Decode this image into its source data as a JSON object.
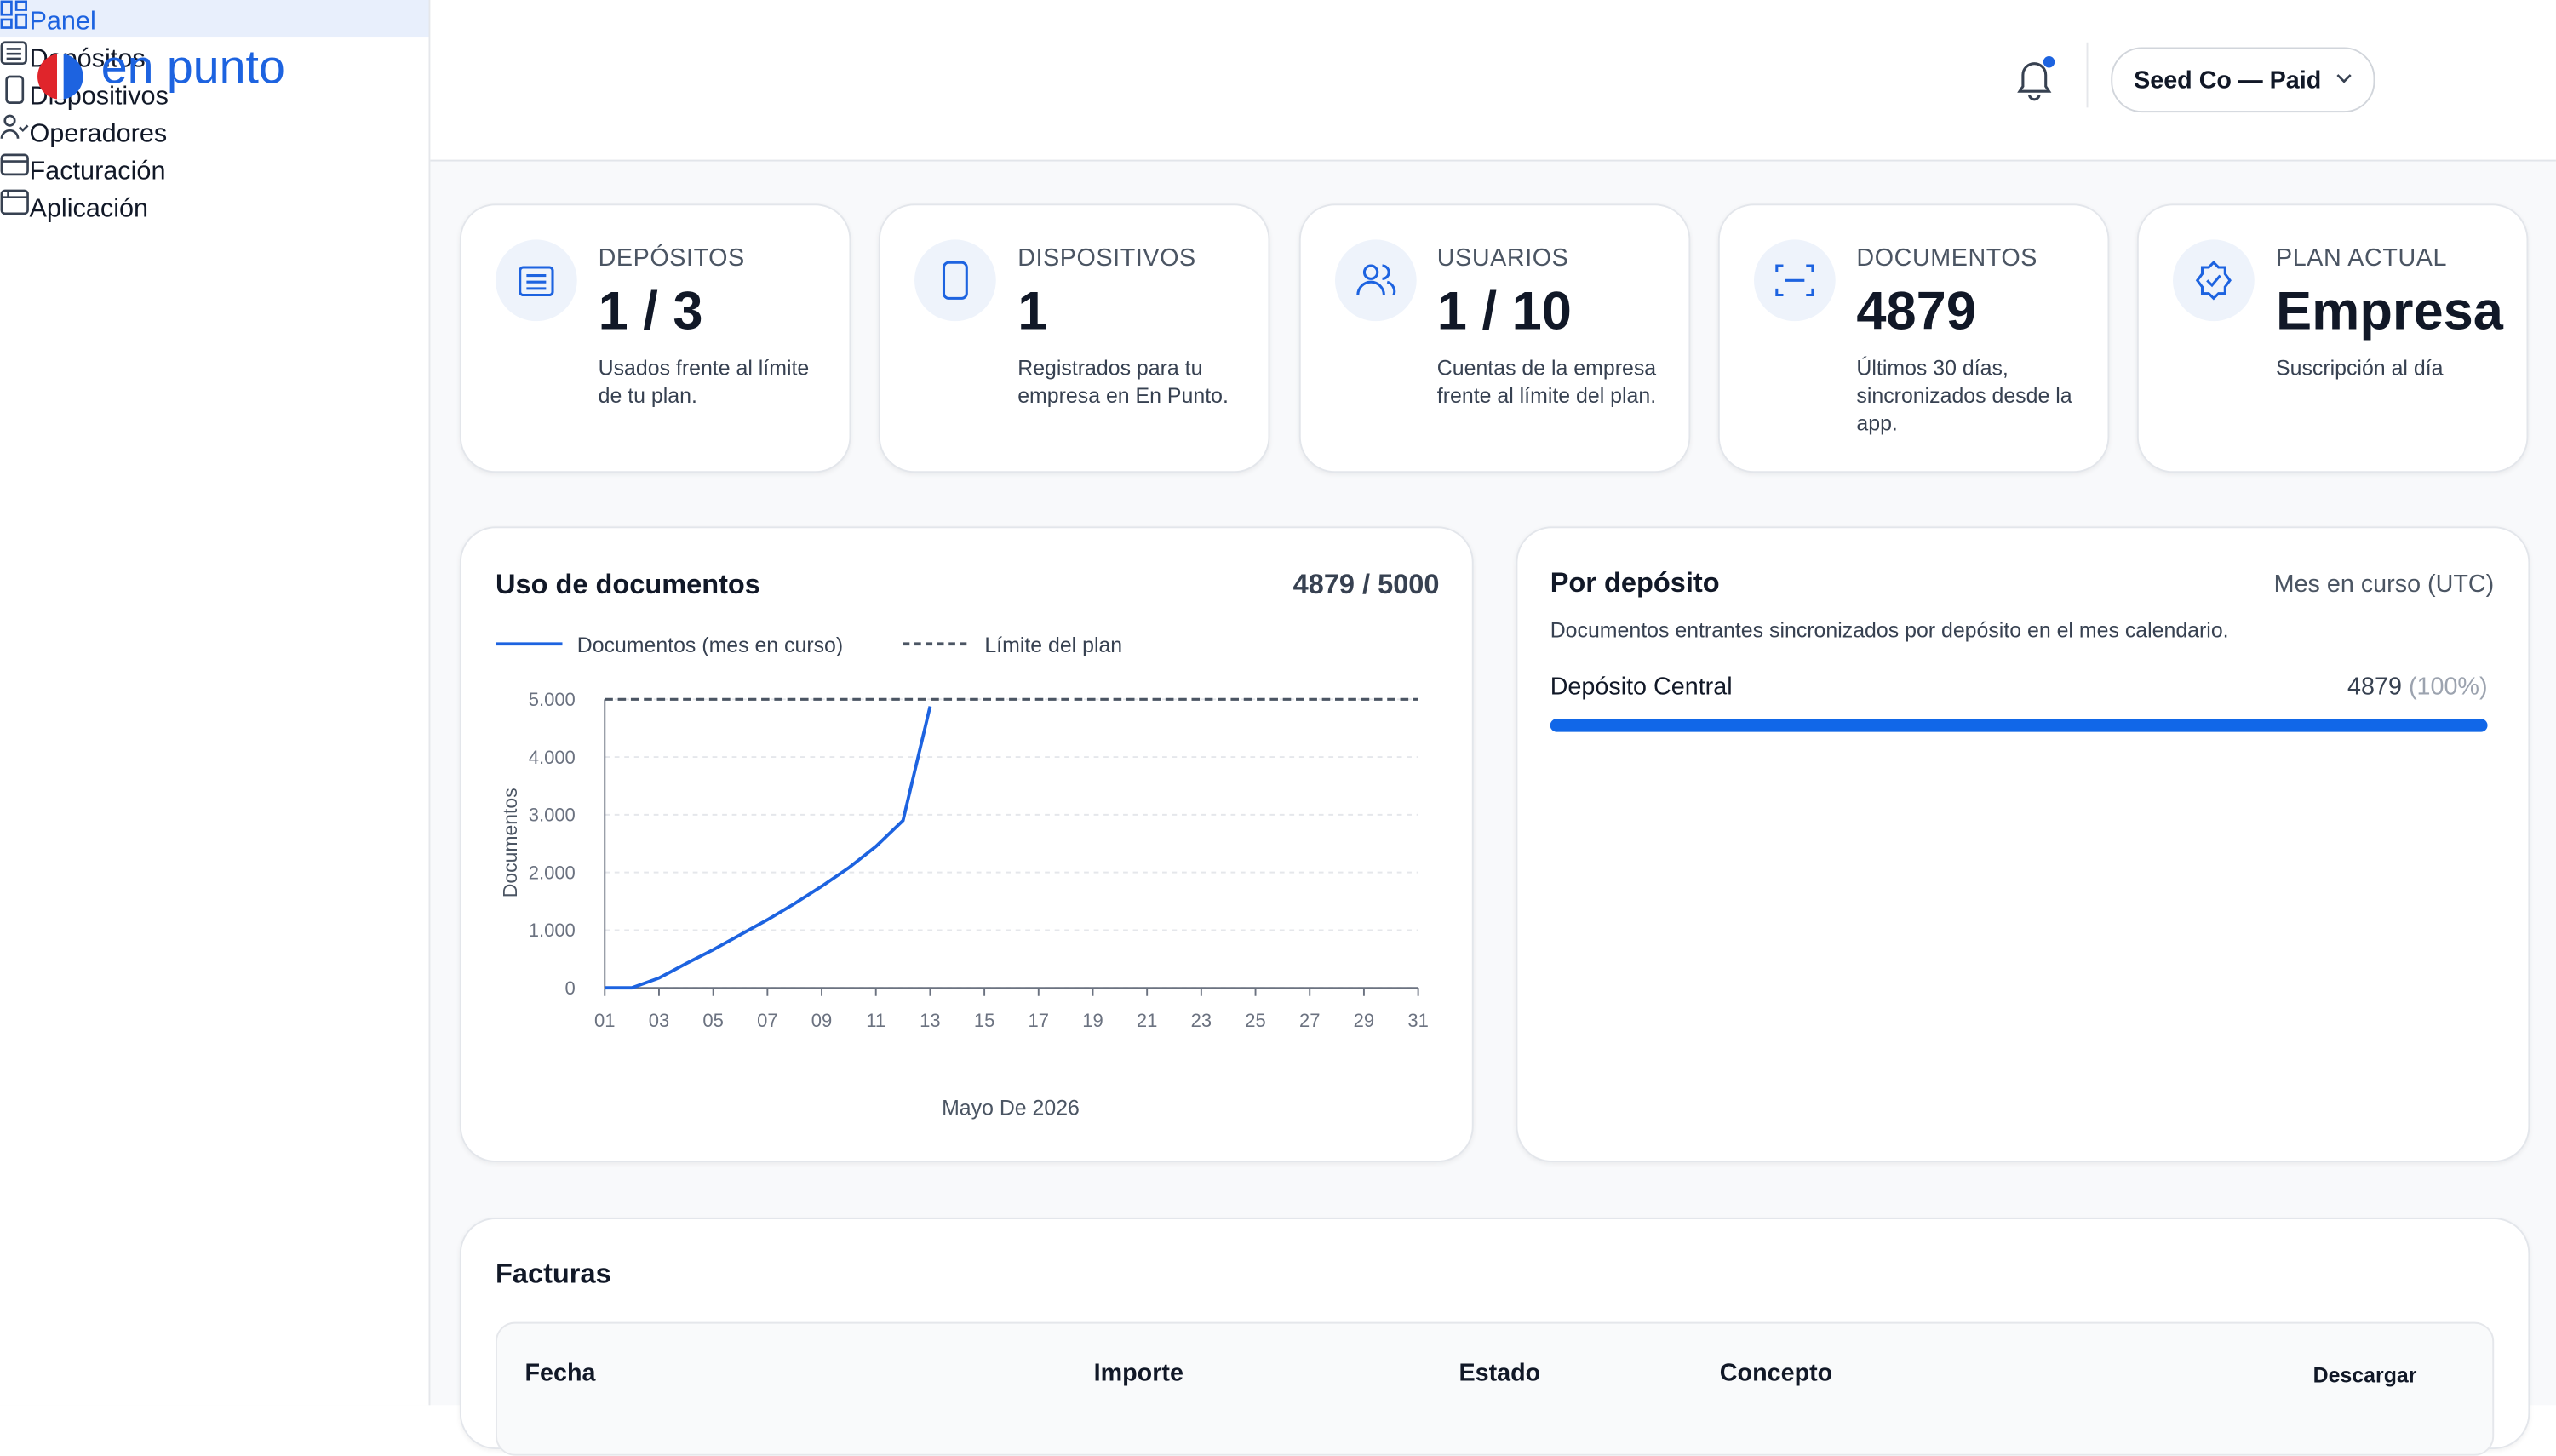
{
  "logo": "en punto",
  "nav": [
    "Panel",
    "Depósitos",
    "Dispositivos",
    "Operadores",
    "Facturación",
    "Aplicación"
  ],
  "header": {
    "account": "Seed Co — Paid"
  },
  "cards": [
    {
      "label": "DEPÓSITOS",
      "value": "1 / 3",
      "description": "Usados frente al límite de tu plan."
    },
    {
      "label": "DISPOSITIVOS",
      "value": "1",
      "description": "Registrados para tu empresa en En Punto."
    },
    {
      "label": "USUARIOS",
      "value": "1 / 10",
      "description": "Cuentas de la empresa frente al límite del plan."
    },
    {
      "label": "DOCUMENTOS",
      "value": "4879",
      "description": "Últimos 30 días, sincronizados desde la app."
    },
    {
      "label": "PLAN ACTUAL",
      "value": "Empresa",
      "description": "Suscripción al día"
    }
  ],
  "chart_data": {
    "type": "line",
    "title": "Uso de documentos",
    "annotation": "4879 / 5000",
    "x_label": "Mayo De 2026",
    "y_label": "Documentos",
    "series": [
      {
        "name": "Documentos (mes en curso)",
        "color": "#1d63e0",
        "style": "solid",
        "x": [
          1,
          2,
          3,
          4,
          5,
          6,
          7,
          8,
          9,
          10,
          11,
          12,
          13
        ],
        "values": [
          0,
          0,
          170,
          420,
          660,
          920,
          1180,
          1460,
          1760,
          2080,
          2450,
          2900,
          4879
        ]
      },
      {
        "name": "Límite del plan",
        "color": "#4b5563",
        "style": "dashed",
        "x": [
          1,
          31
        ],
        "values": [
          5000,
          5000
        ]
      }
    ],
    "xlim": [
      1,
      31
    ],
    "ylim": [
      0,
      5000
    ],
    "xticks": [
      {
        "value": 1,
        "label": "01"
      },
      {
        "value": 3,
        "label": "03"
      },
      {
        "value": 5,
        "label": "05"
      },
      {
        "value": 7,
        "label": "07"
      },
      {
        "value": 9,
        "label": "09"
      },
      {
        "value": 11,
        "label": "11"
      },
      13,
      15,
      17,
      19,
      21,
      23,
      25,
      27,
      29,
      31
    ],
    "yticks": [
      0,
      {
        "value": 1000,
        "label": "1.000"
      },
      {
        "value": 2000,
        "label": "2.000"
      },
      {
        "value": 3000,
        "label": "3.000"
      },
      {
        "value": 4000,
        "label": "4.000"
      },
      {
        "value": 5000,
        "label": "5.000"
      }
    ],
    "grid": true
  },
  "deposits": {
    "title": "Por depósito",
    "period": "Mes en curso (UTC)",
    "description": "Documentos entrantes sincronizados por depósito en el mes calendario.",
    "items": [
      {
        "name": "Depósito Central",
        "value": 4879,
        "percent": 100,
        "percent_label": "(100%)"
      }
    ]
  },
  "invoices": {
    "title": "Facturas",
    "columns": [
      "Fecha",
      "Importe",
      "Estado",
      "Concepto",
      "Descargar"
    ]
  }
}
